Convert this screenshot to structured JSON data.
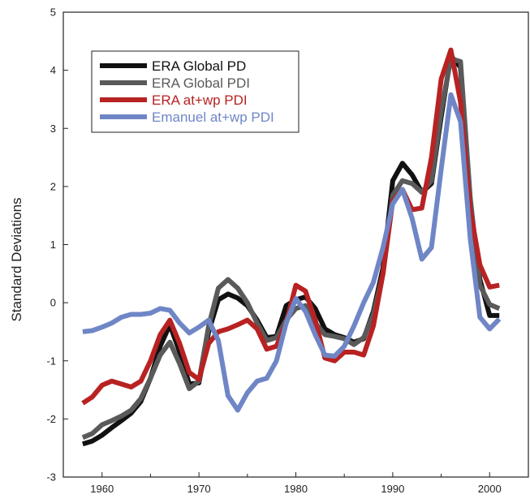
{
  "chart_data": {
    "type": "line",
    "title": "",
    "xlabel": "",
    "ylabel": "Standard Deviations",
    "xlim": [
      1956,
      2004
    ],
    "ylim": [
      -3,
      5
    ],
    "xticks": [
      1960,
      1970,
      1980,
      1990,
      2000
    ],
    "yticks": [
      -3,
      -2,
      -1,
      0,
      1,
      2,
      3,
      4,
      5
    ],
    "grid": false,
    "legend_position": "top-left",
    "series": [
      {
        "name": "ERA Global PD",
        "color": "#111111",
        "x": [
          1958,
          1959,
          1960,
          1961,
          1962,
          1963,
          1964,
          1965,
          1966,
          1967,
          1968,
          1969,
          1970,
          1971,
          1972,
          1973,
          1974,
          1975,
          1976,
          1977,
          1978,
          1979,
          1980,
          1981,
          1982,
          1983,
          1984,
          1985,
          1986,
          1987,
          1988,
          1989,
          1990,
          1991,
          1992,
          1993,
          1994,
          1995,
          1996,
          1997,
          1998,
          1999,
          2000,
          2001
        ],
        "y": [
          -2.43,
          -2.38,
          -2.28,
          -2.15,
          -2.03,
          -1.9,
          -1.7,
          -1.3,
          -0.75,
          -0.38,
          -0.85,
          -1.4,
          -1.38,
          -0.5,
          0.05,
          0.15,
          0.08,
          -0.05,
          -0.3,
          -0.6,
          -0.58,
          -0.05,
          0.05,
          0.1,
          -0.1,
          -0.45,
          -0.55,
          -0.6,
          -0.68,
          -0.62,
          -0.15,
          0.6,
          2.1,
          2.4,
          2.2,
          1.9,
          2.05,
          3.2,
          4.25,
          4.05,
          1.7,
          0.4,
          -0.22,
          -0.22
        ]
      },
      {
        "name": "ERA Global PDI",
        "color": "#5a5a5a",
        "x": [
          1958,
          1959,
          1960,
          1961,
          1962,
          1963,
          1964,
          1965,
          1966,
          1967,
          1968,
          1969,
          1970,
          1971,
          1972,
          1973,
          1974,
          1975,
          1976,
          1977,
          1978,
          1979,
          1980,
          1981,
          1982,
          1983,
          1984,
          1985,
          1986,
          1987,
          1988,
          1989,
          1990,
          1991,
          1992,
          1993,
          1994,
          1995,
          1996,
          1997,
          1998,
          1999,
          2000,
          2001
        ],
        "y": [
          -2.32,
          -2.25,
          -2.1,
          -2.03,
          -1.95,
          -1.85,
          -1.65,
          -1.3,
          -0.9,
          -0.68,
          -1.05,
          -1.48,
          -1.35,
          -0.4,
          0.25,
          0.4,
          0.25,
          0.0,
          -0.35,
          -0.65,
          -0.6,
          -0.3,
          -0.1,
          -0.05,
          -0.35,
          -0.55,
          -0.58,
          -0.62,
          -0.72,
          -0.6,
          -0.2,
          0.5,
          1.85,
          2.1,
          2.05,
          1.9,
          2.1,
          3.3,
          4.2,
          4.15,
          1.8,
          0.3,
          -0.03,
          -0.1
        ]
      },
      {
        "name": "ERA at+wp PDI",
        "color": "#b82222",
        "x": [
          1958,
          1959,
          1960,
          1961,
          1962,
          1963,
          1964,
          1965,
          1966,
          1967,
          1968,
          1969,
          1970,
          1971,
          1972,
          1973,
          1974,
          1975,
          1976,
          1977,
          1978,
          1979,
          1980,
          1981,
          1982,
          1983,
          1984,
          1985,
          1986,
          1987,
          1988,
          1989,
          1990,
          1991,
          1992,
          1993,
          1994,
          1995,
          1996,
          1997,
          1998,
          1999,
          2000,
          2001
        ],
        "y": [
          -1.73,
          -1.62,
          -1.42,
          -1.35,
          -1.4,
          -1.45,
          -1.35,
          -1.0,
          -0.55,
          -0.3,
          -0.7,
          -1.2,
          -1.32,
          -0.7,
          -0.5,
          -0.45,
          -0.38,
          -0.3,
          -0.45,
          -0.8,
          -0.75,
          -0.35,
          0.3,
          0.2,
          -0.3,
          -0.95,
          -1.0,
          -0.85,
          -0.85,
          -0.9,
          -0.4,
          0.5,
          1.75,
          1.95,
          1.6,
          1.63,
          2.5,
          3.85,
          4.35,
          3.45,
          1.6,
          0.65,
          0.27,
          0.3
        ]
      },
      {
        "name": "Emanuel at+wp PDI",
        "color": "#6f86c6",
        "x": [
          1958,
          1959,
          1960,
          1961,
          1962,
          1963,
          1964,
          1965,
          1966,
          1967,
          1968,
          1969,
          1970,
          1971,
          1972,
          1973,
          1974,
          1975,
          1976,
          1977,
          1978,
          1979,
          1980,
          1981,
          1982,
          1983,
          1984,
          1985,
          1986,
          1987,
          1988,
          1989,
          1990,
          1991,
          1992,
          1993,
          1994,
          1995,
          1996,
          1997,
          1998,
          1999,
          2000,
          2001
        ],
        "y": [
          -0.5,
          -0.48,
          -0.42,
          -0.35,
          -0.25,
          -0.2,
          -0.2,
          -0.18,
          -0.1,
          -0.13,
          -0.35,
          -0.52,
          -0.42,
          -0.3,
          -0.65,
          -1.6,
          -1.85,
          -1.55,
          -1.35,
          -1.3,
          -1.0,
          -0.35,
          0.07,
          -0.15,
          -0.55,
          -0.9,
          -0.92,
          -0.75,
          -0.4,
          0.0,
          0.35,
          0.95,
          1.7,
          1.95,
          1.45,
          0.75,
          0.95,
          2.3,
          3.58,
          3.12,
          1.1,
          -0.25,
          -0.45,
          -0.28
        ]
      }
    ]
  }
}
